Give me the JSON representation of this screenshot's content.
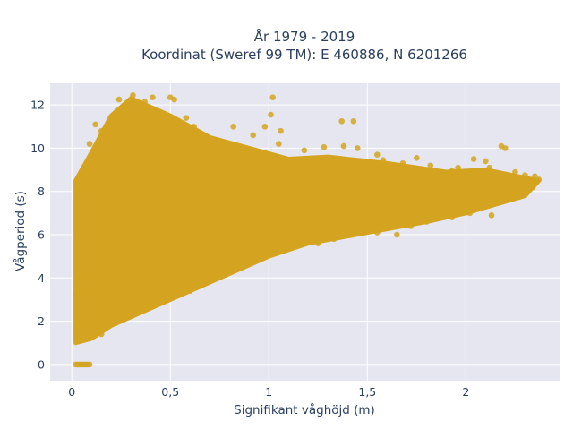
{
  "chart_data": {
    "type": "scatter",
    "title_line1": "År 1979 - 2019",
    "title_line2": "Koordinat (Sweref 99 TM): E 460886, N 6201266",
    "xlabel": "Signifikant våghöjd (m)",
    "ylabel": "Vågperiod (s)",
    "xlim": [
      -0.11,
      2.48
    ],
    "ylim": [
      -0.75,
      13.0
    ],
    "x_ticks": [
      0,
      0.5,
      1,
      1.5,
      2
    ],
    "x_tick_labels": [
      "0",
      "0,5",
      "1",
      "1,5",
      "2"
    ],
    "y_ticks": [
      0,
      2,
      4,
      6,
      8,
      10,
      12
    ],
    "y_tick_labels": [
      "0",
      "2",
      "4",
      "6",
      "8",
      "10",
      "12"
    ],
    "grid": true,
    "legend": "none",
    "marker_color": "#D4A420",
    "plot_bg": "#E5E6EF",
    "point_cloud_envelope": {
      "x_min": 0.01,
      "x_max": 2.38,
      "lower_bound": [
        [
          0.02,
          1.0
        ],
        [
          0.1,
          1.2
        ],
        [
          0.2,
          1.8
        ],
        [
          0.4,
          2.6
        ],
        [
          0.6,
          3.4
        ],
        [
          0.8,
          4.2
        ],
        [
          1.0,
          5.0
        ],
        [
          1.2,
          5.6
        ],
        [
          1.5,
          6.1
        ],
        [
          1.8,
          6.6
        ],
        [
          2.0,
          7.0
        ],
        [
          2.3,
          7.8
        ]
      ],
      "upper_bound": [
        [
          0.02,
          8.5
        ],
        [
          0.1,
          9.8
        ],
        [
          0.2,
          11.5
        ],
        [
          0.3,
          12.3
        ],
        [
          0.5,
          11.5
        ],
        [
          0.7,
          10.5
        ],
        [
          0.9,
          10.0
        ],
        [
          1.1,
          9.5
        ],
        [
          1.3,
          9.6
        ],
        [
          1.6,
          9.3
        ],
        [
          1.9,
          8.9
        ],
        [
          2.1,
          9.0
        ],
        [
          2.37,
          8.5
        ]
      ]
    },
    "points": [
      [
        0.02,
        0.0
      ],
      [
        0.03,
        0.0
      ],
      [
        0.04,
        0.0
      ],
      [
        0.05,
        0.0
      ],
      [
        0.06,
        0.0
      ],
      [
        0.07,
        0.0
      ],
      [
        0.08,
        0.0
      ],
      [
        0.09,
        0.0
      ],
      [
        0.02,
        3.3
      ],
      [
        0.03,
        4.1
      ],
      [
        0.31,
        12.45
      ],
      [
        0.24,
        12.25
      ],
      [
        0.5,
        12.35
      ],
      [
        0.41,
        12.35
      ],
      [
        1.02,
        12.35
      ],
      [
        0.37,
        12.15
      ],
      [
        0.52,
        12.25
      ],
      [
        0.09,
        10.2
      ],
      [
        0.15,
        10.8
      ],
      [
        0.12,
        11.1
      ],
      [
        0.62,
        11.0
      ],
      [
        0.58,
        11.4
      ],
      [
        0.47,
        11.2
      ],
      [
        0.92,
        10.6
      ],
      [
        1.01,
        11.55
      ],
      [
        0.82,
        11.0
      ],
      [
        0.98,
        11.0
      ],
      [
        1.06,
        10.8
      ],
      [
        1.37,
        11.25
      ],
      [
        1.43,
        11.25
      ],
      [
        1.45,
        10.0
      ],
      [
        1.38,
        10.1
      ],
      [
        1.55,
        9.7
      ],
      [
        1.18,
        9.9
      ],
      [
        1.05,
        10.2
      ],
      [
        1.28,
        10.05
      ],
      [
        1.58,
        9.45
      ],
      [
        1.82,
        9.2
      ],
      [
        1.68,
        9.3
      ],
      [
        1.75,
        9.55
      ],
      [
        1.93,
        8.95
      ],
      [
        1.96,
        9.1
      ],
      [
        2.04,
        9.5
      ],
      [
        2.1,
        9.4
      ],
      [
        2.12,
        9.1
      ],
      [
        2.18,
        10.1
      ],
      [
        2.2,
        10.0
      ],
      [
        2.25,
        8.9
      ],
      [
        2.3,
        8.75
      ],
      [
        2.35,
        8.7
      ],
      [
        2.37,
        8.55
      ],
      [
        2.32,
        8.45
      ],
      [
        2.34,
        8.2
      ],
      [
        2.28,
        8.0
      ],
      [
        2.23,
        7.9
      ],
      [
        2.17,
        7.5
      ],
      [
        2.1,
        7.3
      ],
      [
        2.13,
        6.9
      ],
      [
        2.02,
        7.0
      ],
      [
        1.93,
        6.8
      ],
      [
        1.88,
        7.0
      ],
      [
        1.8,
        6.6
      ],
      [
        1.72,
        6.4
      ],
      [
        1.65,
        6.0
      ],
      [
        1.55,
        6.1
      ],
      [
        1.51,
        6.4
      ],
      [
        1.42,
        6.0
      ],
      [
        1.33,
        5.8
      ],
      [
        1.25,
        5.6
      ],
      [
        1.1,
        5.4
      ],
      [
        0.98,
        5.0
      ],
      [
        0.9,
        4.9
      ],
      [
        0.85,
        4.6
      ],
      [
        0.7,
        3.9
      ],
      [
        0.6,
        3.4
      ],
      [
        0.51,
        3.2
      ],
      [
        0.45,
        3.8
      ],
      [
        0.36,
        2.6
      ],
      [
        0.28,
        2.4
      ],
      [
        0.22,
        1.9
      ],
      [
        0.15,
        1.4
      ]
    ]
  }
}
